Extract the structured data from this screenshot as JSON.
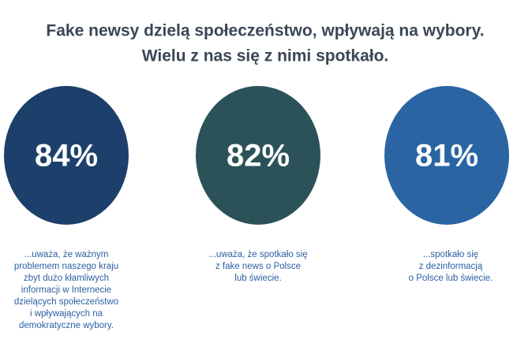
{
  "header": {
    "title_lines": [
      "Fake newsy dzielą społeczeństwo, wpływają na wybory.",
      "Wielu z nas się z nimi spotkało."
    ]
  },
  "stats": [
    {
      "value": "84%",
      "caption_lines": [
        "...uważa, że ważnym",
        "problemem naszego kraju",
        "zbyt dużo kłamliwych",
        "informacji w Internecie",
        "dzielących społeczeństwo",
        "i wpływających na",
        "demokratyczne wybory."
      ]
    },
    {
      "value": "82%",
      "caption_lines": [
        "...uważa, że spotkało się",
        "z fake news o Polsce",
        "lub świecie."
      ]
    },
    {
      "value": "81%",
      "caption_lines": [
        "...spotkało się",
        "z dezinformacją",
        "o Polsce lub świecie."
      ]
    }
  ]
}
